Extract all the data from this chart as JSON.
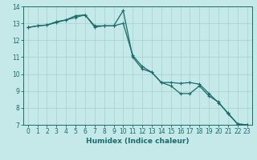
{
  "xlabel": "Humidex (Indice chaleur)",
  "background_color": "#c5e8e8",
  "grid_color": "#aad4d4",
  "line_color": "#1a6b6b",
  "spine_color": "#1a6b6b",
  "xlim": [
    -0.5,
    23.5
  ],
  "ylim": [
    7,
    14
  ],
  "xticks": [
    0,
    1,
    2,
    3,
    4,
    5,
    6,
    7,
    8,
    9,
    10,
    11,
    12,
    13,
    14,
    15,
    16,
    17,
    18,
    19,
    20,
    21,
    22,
    23
  ],
  "yticks": [
    7,
    8,
    9,
    10,
    11,
    12,
    13,
    14
  ],
  "line1_x": [
    0,
    1,
    2,
    3,
    4,
    5,
    6,
    7,
    8,
    9,
    10,
    11,
    12,
    13,
    14,
    15,
    16,
    17,
    18,
    19,
    20,
    21,
    22,
    23
  ],
  "line1_y": [
    12.75,
    12.85,
    12.9,
    13.05,
    13.2,
    13.45,
    13.5,
    12.85,
    12.85,
    12.85,
    13.0,
    11.1,
    10.45,
    10.1,
    9.5,
    9.5,
    9.45,
    9.5,
    9.4,
    8.85,
    8.3,
    7.7,
    7.05,
    7.0
  ],
  "line2_x": [
    0,
    1,
    2,
    3,
    4,
    5,
    6,
    7,
    8,
    9,
    10,
    11,
    12,
    13,
    14,
    15,
    16,
    17,
    18,
    19,
    20,
    21,
    22,
    23
  ],
  "line2_y": [
    12.75,
    12.85,
    12.9,
    13.1,
    13.2,
    13.35,
    13.5,
    12.78,
    12.85,
    12.85,
    13.75,
    11.0,
    10.3,
    10.1,
    9.5,
    9.3,
    8.85,
    8.85,
    9.3,
    8.7,
    8.35,
    7.65,
    7.05,
    7.0
  ],
  "tick_labelsize": 5.5,
  "xlabel_fontsize": 6.5,
  "linewidth": 0.9,
  "markersize": 3.0,
  "markeredgewidth": 0.8
}
